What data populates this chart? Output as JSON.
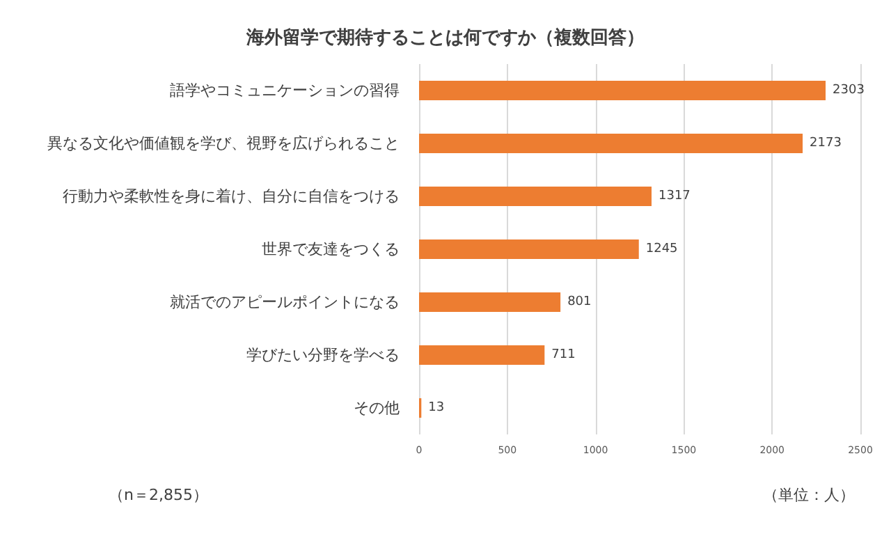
{
  "chart_data": {
    "type": "bar",
    "orientation": "horizontal",
    "title": "海外留学で期待することは何ですか（複数回答）",
    "categories": [
      "語学やコミュニケーションの習得",
      "異なる文化や価値観を学び、視野を広げられること",
      "行動力や柔軟性を身に着け、自分に自信をつける",
      "世界で友達をつくる",
      "就活でのアピールポイントになる",
      "学びたい分野を学べる",
      "その他"
    ],
    "values": [
      2303,
      2173,
      1317,
      1245,
      801,
      711,
      13
    ],
    "color": "#ed7d31",
    "xlim": [
      0,
      2500
    ],
    "xticks": [
      0,
      500,
      1000,
      1500,
      2000,
      2500
    ],
    "grid": "x",
    "data_labels": true,
    "annotations": [
      "（n＝2,855）",
      "（単位：人）"
    ]
  }
}
